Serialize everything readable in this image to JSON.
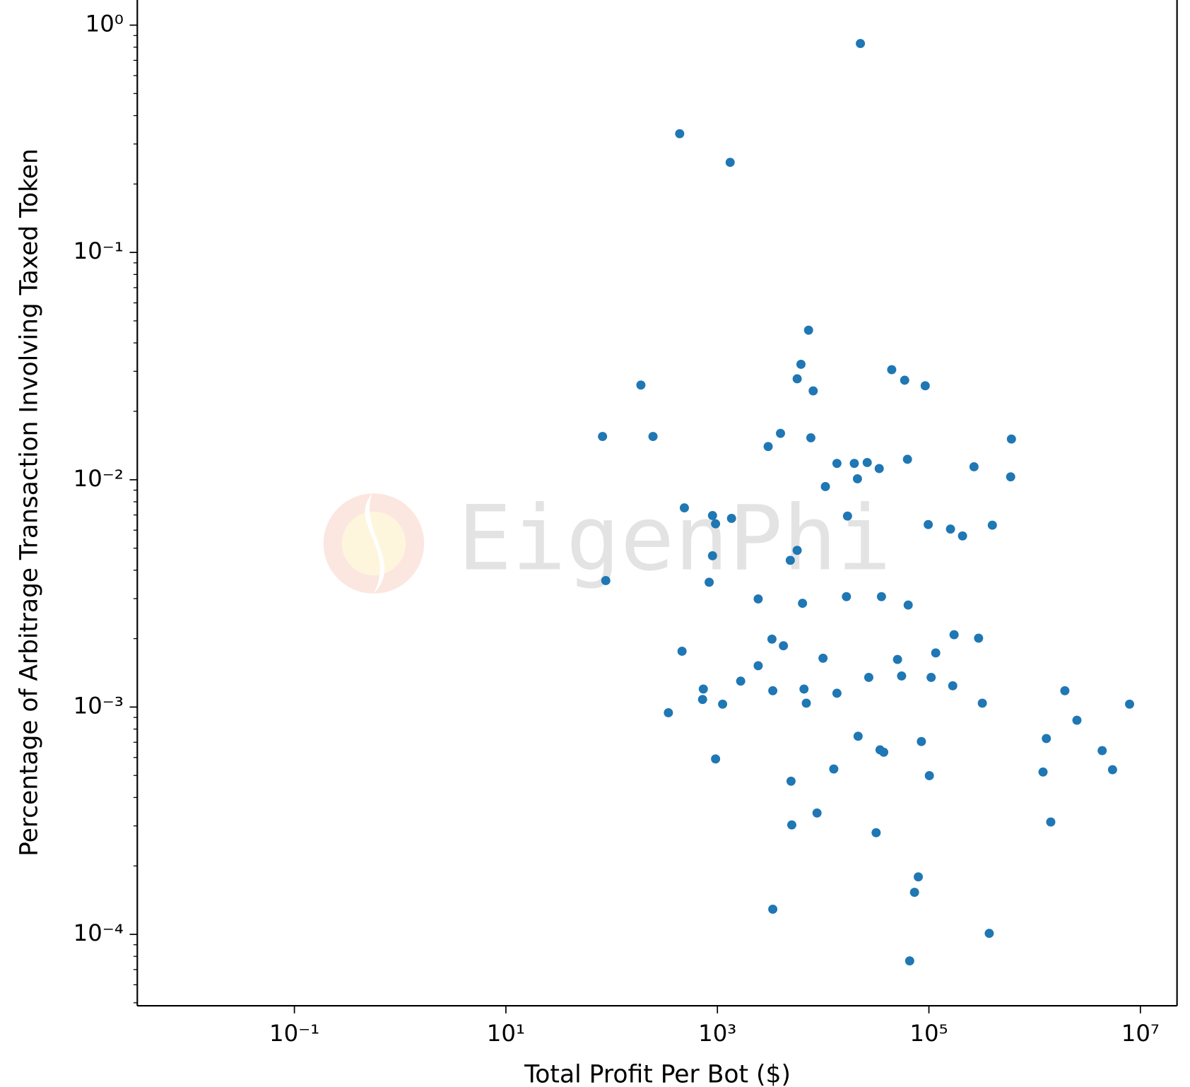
{
  "chart_data": {
    "type": "scatter",
    "xlabel": "Total Profit Per Bot ($)",
    "ylabel": "Percentage of Arbitrage Transaction Involving Taxed Token",
    "watermark": "EigenPhi",
    "color": "#1f77b4",
    "xscale": "log",
    "yscale": "log",
    "minor_yticks": true,
    "xlim": [
      0.00327,
      22200000
    ],
    "ylim": [
      4.85e-05,
      1.29
    ],
    "xticks": [
      {
        "value": 0.1,
        "label": "10⁻¹"
      },
      {
        "value": 10,
        "label": "10¹"
      },
      {
        "value": 1000,
        "label": "10³"
      },
      {
        "value": 100000,
        "label": "10⁵"
      },
      {
        "value": 10000000,
        "label": "10⁷"
      }
    ],
    "yticks": [
      {
        "value": 1,
        "label": "10⁰"
      },
      {
        "value": 0.1,
        "label": "10⁻¹"
      },
      {
        "value": 0.01,
        "label": "10⁻²"
      },
      {
        "value": 0.001,
        "label": "10⁻³"
      },
      {
        "value": 0.0001,
        "label": "10⁻⁴"
      }
    ],
    "x": [
      22500,
      440,
      1320,
      7280,
      6170,
      5680,
      8050,
      189,
      44500,
      59000,
      92300,
      82,
      246,
      3950,
      3020,
      7650,
      603000,
      13500,
      19700,
      26100,
      33900,
      62700,
      21100,
      10500,
      267000,
      593000,
      487,
      899,
      961,
      1360,
      17000,
      98600,
      160000,
      208000,
      398000,
      5680,
      899,
      4890,
      88,
      836,
      2430,
      16600,
      35600,
      6380,
      63700,
      3280,
      4210,
      173000,
      295000,
      463,
      9970,
      50500,
      116000,
      2430,
      1660,
      27000,
      55200,
      105000,
      168000,
      736,
      724,
      3340,
      6590,
      13500,
      6930,
      1120,
      320000,
      1930000,
      7900000,
      344,
      2510000,
      21400,
      1290000,
      84900,
      34500,
      37400,
      4350000,
      961,
      12600,
      5450000,
      1200000,
      101000,
      4970,
      8750,
      1420000,
      5050,
      31700,
      79400,
      73100,
      3340,
      372000,
      65800
    ],
    "y": [
      0.83,
      0.333,
      0.249,
      0.0455,
      0.0322,
      0.0278,
      0.0246,
      0.0261,
      0.0305,
      0.0274,
      0.0259,
      0.0155,
      0.0155,
      0.016,
      0.014,
      0.0153,
      0.0151,
      0.0118,
      0.0118,
      0.0119,
      0.0112,
      0.0123,
      0.0101,
      0.00933,
      0.0114,
      0.0103,
      0.00752,
      0.00696,
      0.0064,
      0.00676,
      0.00692,
      0.00635,
      0.00607,
      0.00566,
      0.00631,
      0.00489,
      0.00463,
      0.00442,
      0.0036,
      0.00354,
      0.00299,
      0.00306,
      0.00306,
      0.00286,
      0.00281,
      0.00199,
      0.00186,
      0.00208,
      0.00201,
      0.00176,
      0.00164,
      0.00162,
      0.00173,
      0.00152,
      0.0013,
      0.00135,
      0.00137,
      0.00135,
      0.00124,
      0.0012,
      0.00108,
      0.00118,
      0.0012,
      0.00115,
      0.00104,
      0.00103,
      0.00104,
      0.00118,
      0.00103,
      0.000944,
      0.000875,
      0.000744,
      0.000727,
      0.000705,
      0.000648,
      0.000633,
      0.000643,
      0.000591,
      0.000534,
      0.00053,
      0.000518,
      0.000499,
      0.000472,
      0.000342,
      0.000312,
      0.000303,
      0.00028,
      0.000179,
      0.000153,
      0.000129,
      0.000101,
      7.64e-05
    ]
  }
}
